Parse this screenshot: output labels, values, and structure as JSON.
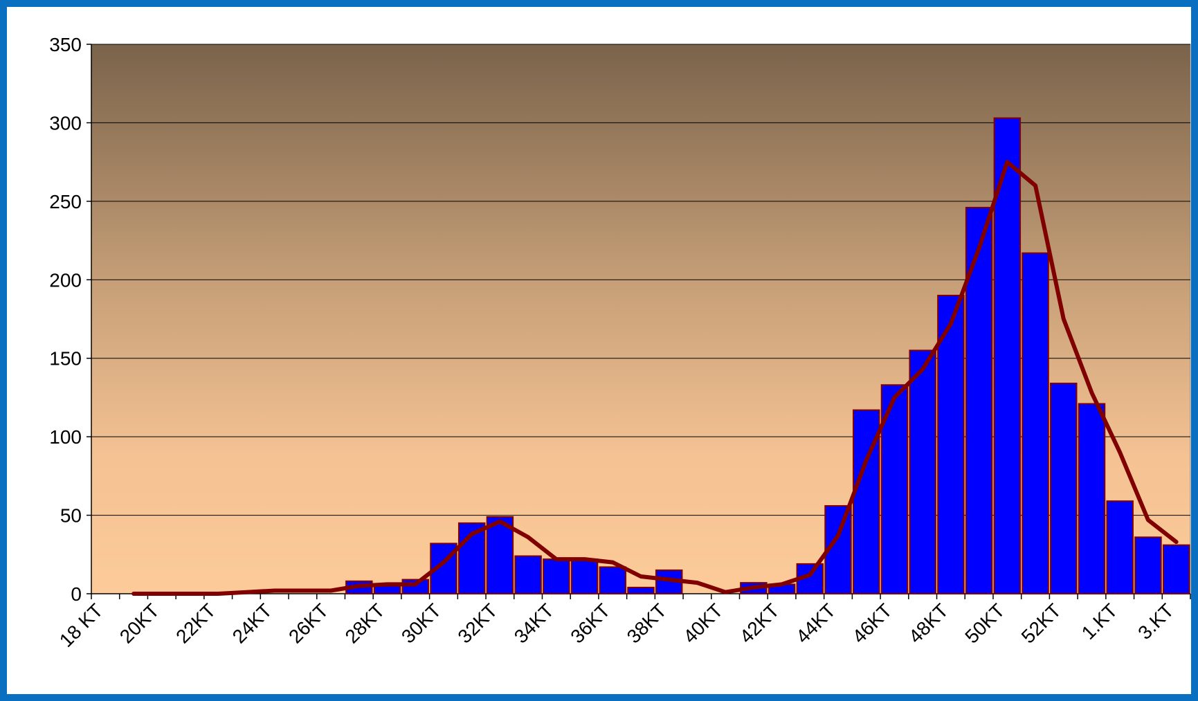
{
  "chart_data": {
    "type": "bar",
    "categories": [
      "18 KT",
      null,
      "20KT",
      null,
      "22KT",
      null,
      "24KT",
      null,
      "26KT",
      null,
      "28KT",
      null,
      "30KT",
      null,
      "32KT",
      null,
      "34KT",
      null,
      "36KT",
      null,
      "38KT",
      null,
      "40KT",
      null,
      "42KT",
      null,
      "44KT",
      null,
      "46KT",
      null,
      "48KT",
      null,
      "50KT",
      null,
      "52KT",
      null,
      "1.KT",
      null,
      "3.KT"
    ],
    "series": [
      {
        "type": "bar",
        "color": "#0000ff",
        "edge_color": "#800000",
        "values": [
          0,
          0,
          0,
          0,
          0,
          0,
          0,
          0,
          0,
          8,
          5,
          9,
          32,
          45,
          49,
          24,
          22,
          22,
          17,
          4,
          15,
          0,
          0,
          7,
          6,
          19,
          56,
          117,
          133,
          155,
          190,
          246,
          303,
          217,
          134,
          121,
          59,
          36,
          31
        ]
      },
      {
        "type": "line",
        "color": "#800000",
        "values": [
          null,
          0,
          0,
          0,
          0,
          1,
          2,
          2,
          2,
          5,
          6,
          6,
          20,
          38,
          46,
          36,
          22,
          22,
          20,
          11,
          9,
          7,
          1,
          4,
          6,
          12,
          37,
          85,
          125,
          143,
          172,
          220,
          275,
          260,
          175,
          128,
          90,
          47,
          33
        ]
      }
    ],
    "ylim": [
      0,
      350
    ],
    "yticks": [
      0,
      50,
      100,
      150,
      200,
      250,
      300,
      350
    ],
    "grid": true
  }
}
